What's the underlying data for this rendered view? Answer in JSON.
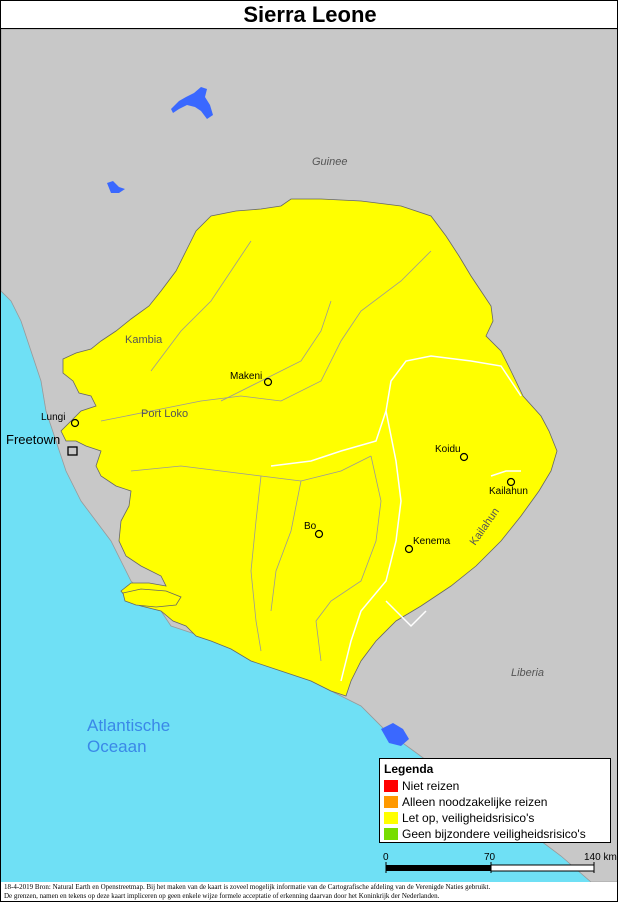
{
  "title": "Sierra Leone",
  "countries": {
    "guinea": "Guinee",
    "liberia": "Liberia"
  },
  "ocean": {
    "line1": "Atlantische",
    "line2": "Oceaan"
  },
  "cities": {
    "freetown": "Freetown",
    "lungi": "Lungi",
    "makeni": "Makeni",
    "bo": "Bo",
    "kenema": "Kenema",
    "koidu": "Koidu",
    "kailahun": "Kailahun"
  },
  "regions": {
    "kambia": "Kambia",
    "port_loko": "Port Loko",
    "kailahun": "Kailahun"
  },
  "legend": {
    "title": "Legenda",
    "items": [
      {
        "label": "Niet reizen",
        "color": "#ff0000"
      },
      {
        "label": "Alleen noodzakelijke reizen",
        "color": "#ff9900"
      },
      {
        "label": "Let op, veiligheidsrisico's",
        "color": "#ffff00"
      },
      {
        "label": "Geen bijzondere veiligheidsrisico's",
        "color": "#77dd00"
      }
    ]
  },
  "scale": {
    "zero": "0",
    "mid": "70",
    "end": "140 km"
  },
  "footer": {
    "line1": "18-4-2019 Bron: Natural Earth en Openstreetmap. Bij het maken van de kaart is zoveel mogelijk informatie van de Cartografische afdeling van de Verenigde Naties gebruikt.",
    "line2": "De grenzen, namen en tekens op deze kaart impliceren op geen enkele wijze formele acceptatie of erkenning daarvan door het Koninkrijk der Nederlanden."
  },
  "colors": {
    "ocean": "#6fe0f5",
    "land": "#c8c8c8",
    "country": "#ffff00",
    "lake": "#3a68ff"
  }
}
